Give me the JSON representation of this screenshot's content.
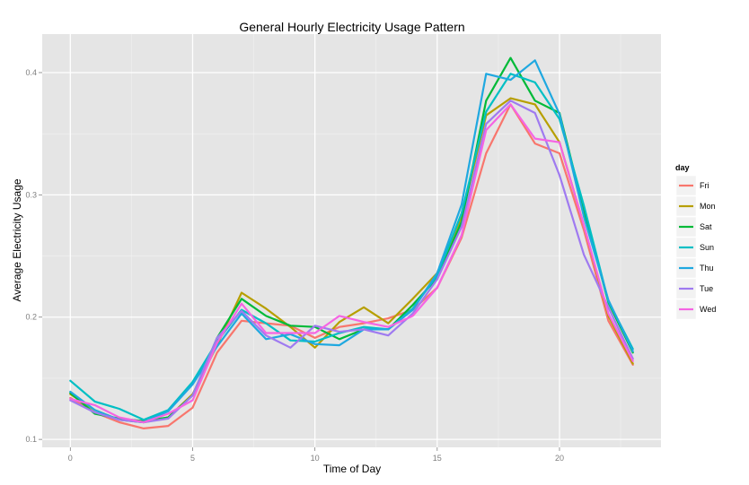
{
  "chart_data": {
    "type": "line",
    "title": "General Hourly Electricity Usage Pattern",
    "xlabel": "Time of Day",
    "ylabel": "Average Electricity Usage",
    "xlim": [
      -1.15,
      24.15
    ],
    "ylim": [
      0.0935,
      0.4315
    ],
    "xticks": [
      0,
      5,
      10,
      15,
      20
    ],
    "yticks": [
      0.1,
      0.2,
      0.3,
      0.4
    ],
    "ytick_labels": [
      "0.1",
      "0.2",
      "0.3",
      "0.4"
    ],
    "grid": true,
    "legend_title": "day",
    "legend_position": "right",
    "x": [
      0,
      1,
      2,
      3,
      4,
      5,
      6,
      7,
      8,
      9,
      10,
      11,
      12,
      13,
      14,
      15,
      16,
      17,
      18,
      19,
      20,
      21,
      22,
      23
    ],
    "series": [
      {
        "name": "Fri",
        "color": "#F8766D",
        "values": [
          0.134,
          0.122,
          0.114,
          0.109,
          0.111,
          0.126,
          0.171,
          0.197,
          0.195,
          0.193,
          0.183,
          0.192,
          0.195,
          0.199,
          0.206,
          0.224,
          0.265,
          0.334,
          0.374,
          0.342,
          0.334,
          0.271,
          0.197,
          0.161
        ]
      },
      {
        "name": "Mon",
        "color": "#B79F00",
        "values": [
          0.137,
          0.124,
          0.116,
          0.114,
          0.118,
          0.137,
          0.177,
          0.22,
          0.207,
          0.192,
          0.175,
          0.196,
          0.208,
          0.195,
          0.215,
          0.236,
          0.282,
          0.365,
          0.379,
          0.374,
          0.343,
          0.275,
          0.201,
          0.162
        ]
      },
      {
        "name": "Sat",
        "color": "#00BA38",
        "values": [
          0.138,
          0.121,
          0.117,
          0.115,
          0.118,
          0.136,
          0.183,
          0.215,
          0.201,
          0.193,
          0.192,
          0.182,
          0.19,
          0.19,
          0.21,
          0.232,
          0.278,
          0.377,
          0.412,
          0.377,
          0.367,
          0.287,
          0.212,
          0.171
        ]
      },
      {
        "name": "Sun",
        "color": "#00BFC4",
        "values": [
          0.148,
          0.131,
          0.125,
          0.116,
          0.124,
          0.147,
          0.18,
          0.206,
          0.195,
          0.181,
          0.18,
          0.187,
          0.192,
          0.19,
          0.207,
          0.234,
          0.285,
          0.368,
          0.399,
          0.392,
          0.362,
          0.291,
          0.213,
          0.174
        ]
      },
      {
        "name": "Thu",
        "color": "#1FA8E0",
        "values": [
          0.139,
          0.124,
          0.116,
          0.114,
          0.123,
          0.145,
          0.176,
          0.203,
          0.182,
          0.186,
          0.178,
          0.177,
          0.19,
          0.19,
          0.206,
          0.236,
          0.292,
          0.399,
          0.394,
          0.41,
          0.366,
          0.282,
          0.214,
          0.172
        ]
      },
      {
        "name": "Tue",
        "color": "#9F7AF0",
        "values": [
          0.132,
          0.122,
          0.116,
          0.114,
          0.117,
          0.136,
          0.183,
          0.205,
          0.185,
          0.175,
          0.193,
          0.188,
          0.19,
          0.185,
          0.203,
          0.231,
          0.274,
          0.358,
          0.377,
          0.367,
          0.316,
          0.251,
          0.208,
          0.166
        ]
      },
      {
        "name": "Wed",
        "color": "#F564E3",
        "values": [
          0.133,
          0.128,
          0.118,
          0.114,
          0.121,
          0.132,
          0.179,
          0.211,
          0.187,
          0.187,
          0.187,
          0.201,
          0.196,
          0.192,
          0.201,
          0.224,
          0.267,
          0.353,
          0.374,
          0.346,
          0.343,
          0.275,
          0.203,
          0.164
        ]
      }
    ]
  }
}
